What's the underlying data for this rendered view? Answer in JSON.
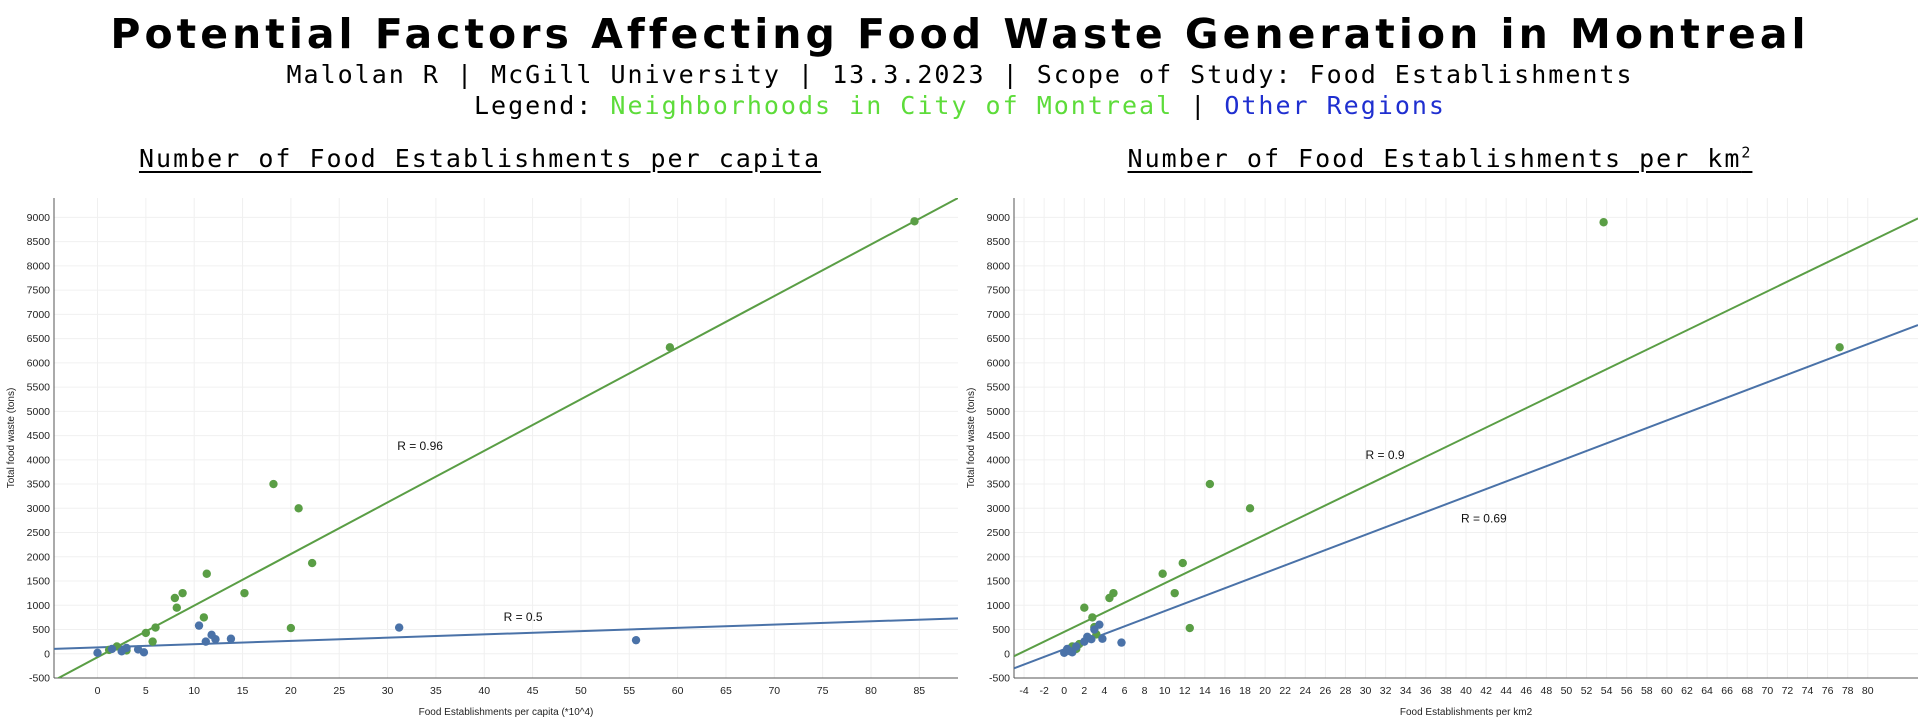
{
  "header": {
    "title": "Potential Factors Affecting Food Waste Generation in Montreal",
    "subtitle": "Malolan R | McGill University | 13.3.2023 | Scope of Study: Food Establishments",
    "legend_prefix": "Legend:",
    "legend_green": "Neighborhoods in City of Montreal",
    "legend_separator": "|",
    "legend_blue": "Other Regions"
  },
  "colors": {
    "green": "#5a9e45",
    "blue": "#4a72a8",
    "legend_green": "#5ddc3a",
    "legend_blue": "#1f2fd0"
  },
  "chart_data": [
    {
      "type": "scatter",
      "title": "Number of Food Establishments per capita",
      "xlabel": "Food Establishments per capita (*10^4)",
      "ylabel": "Total food waste (tons)",
      "xlim": [
        -4.5,
        89
      ],
      "ylim": [
        -500,
        9400
      ],
      "xticks": [
        0,
        5,
        10,
        15,
        20,
        25,
        30,
        35,
        40,
        45,
        50,
        55,
        60,
        65,
        70,
        75,
        80,
        85
      ],
      "yticks": [
        -500,
        0,
        500,
        1000,
        1500,
        2000,
        2500,
        3000,
        3500,
        4000,
        4500,
        5000,
        5500,
        6000,
        6500,
        7000,
        7500,
        8000,
        8500,
        9000
      ],
      "grid": true,
      "series": [
        {
          "color": "#5a9e45",
          "points": [
            [
              1.2,
              80
            ],
            [
              2,
              150
            ],
            [
              3,
              70
            ],
            [
              5,
              430
            ],
            [
              5.7,
              250
            ],
            [
              6,
              540
            ],
            [
              8,
              1150
            ],
            [
              8.2,
              950
            ],
            [
              8.8,
              1250
            ],
            [
              11,
              750
            ],
            [
              11.3,
              1650
            ],
            [
              15.2,
              1250
            ],
            [
              18.2,
              3500
            ],
            [
              20,
              530
            ],
            [
              20.8,
              3000
            ],
            [
              22.2,
              1870
            ],
            [
              59.2,
              6320
            ],
            [
              84.5,
              8920
            ]
          ],
          "trendline": [
            [
              -4.5,
              -550
            ],
            [
              89,
              9400
            ]
          ],
          "label": "R = 0.96",
          "label_pos": [
            31,
            4200
          ]
        },
        {
          "color": "#4a72a8",
          "points": [
            [
              0,
              20
            ],
            [
              1.5,
              100
            ],
            [
              2.5,
              50
            ],
            [
              3,
              120
            ],
            [
              4.2,
              90
            ],
            [
              4.8,
              30
            ],
            [
              10.5,
              580
            ],
            [
              11.2,
              250
            ],
            [
              11.8,
              390
            ],
            [
              12.2,
              300
            ],
            [
              13.8,
              310
            ],
            [
              31.2,
              540
            ],
            [
              55.7,
              280
            ]
          ],
          "trendline": [
            [
              -4.5,
              100
            ],
            [
              89,
              730
            ]
          ],
          "label": "R = 0.5",
          "label_pos": [
            42,
            680
          ]
        }
      ]
    },
    {
      "type": "scatter",
      "title": "Number of Food Establishments per km",
      "title_sup": "2",
      "xlabel": "Food Establishments per km2",
      "ylabel": "Total food waste (tons)",
      "xlim": [
        -5,
        85
      ],
      "ylim": [
        -500,
        9400
      ],
      "xticks": [
        -4,
        -2,
        0,
        2,
        4,
        6,
        8,
        10,
        12,
        14,
        16,
        18,
        20,
        22,
        24,
        26,
        28,
        30,
        32,
        34,
        36,
        38,
        40,
        42,
        44,
        46,
        48,
        50,
        52,
        54,
        56,
        58,
        60,
        62,
        64,
        66,
        68,
        70,
        72,
        74,
        76,
        78,
        80
      ],
      "yticks": [
        -500,
        0,
        500,
        1000,
        1500,
        2000,
        2500,
        3000,
        3500,
        4000,
        4500,
        5000,
        5500,
        6000,
        6500,
        7000,
        7500,
        8000,
        8500,
        9000
      ],
      "grid": true,
      "series": [
        {
          "color": "#5a9e45",
          "points": [
            [
              0.8,
              150
            ],
            [
              1.2,
              100
            ],
            [
              1.5,
              200
            ],
            [
              2,
              950
            ],
            [
              2.8,
              750
            ],
            [
              3,
              550
            ],
            [
              3.2,
              400
            ],
            [
              4.5,
              1150
            ],
            [
              4.9,
              1250
            ],
            [
              9.8,
              1650
            ],
            [
              11,
              1250
            ],
            [
              11.8,
              1870
            ],
            [
              12.5,
              530
            ],
            [
              14.5,
              3500
            ],
            [
              18.5,
              3000
            ],
            [
              53.7,
              8900
            ],
            [
              77.2,
              6320
            ]
          ],
          "trendline": [
            [
              -5,
              -50
            ],
            [
              85,
              8980
            ]
          ],
          "label": "R = 0.9",
          "label_pos": [
            30,
            4020
          ]
        },
        {
          "color": "#4a72a8",
          "points": [
            [
              0,
              20
            ],
            [
              0.3,
              100
            ],
            [
              0.6,
              50
            ],
            [
              0.8,
              30
            ],
            [
              1.2,
              150
            ],
            [
              2,
              250
            ],
            [
              2.3,
              350
            ],
            [
              2.7,
              300
            ],
            [
              3,
              500
            ],
            [
              3.5,
              600
            ],
            [
              3.8,
              310
            ],
            [
              5.7,
              230
            ]
          ],
          "trendline": [
            [
              -5,
              -300
            ],
            [
              85,
              6780
            ]
          ],
          "label": "R = 0.69",
          "label_pos": [
            39.5,
            2710
          ]
        }
      ]
    }
  ]
}
